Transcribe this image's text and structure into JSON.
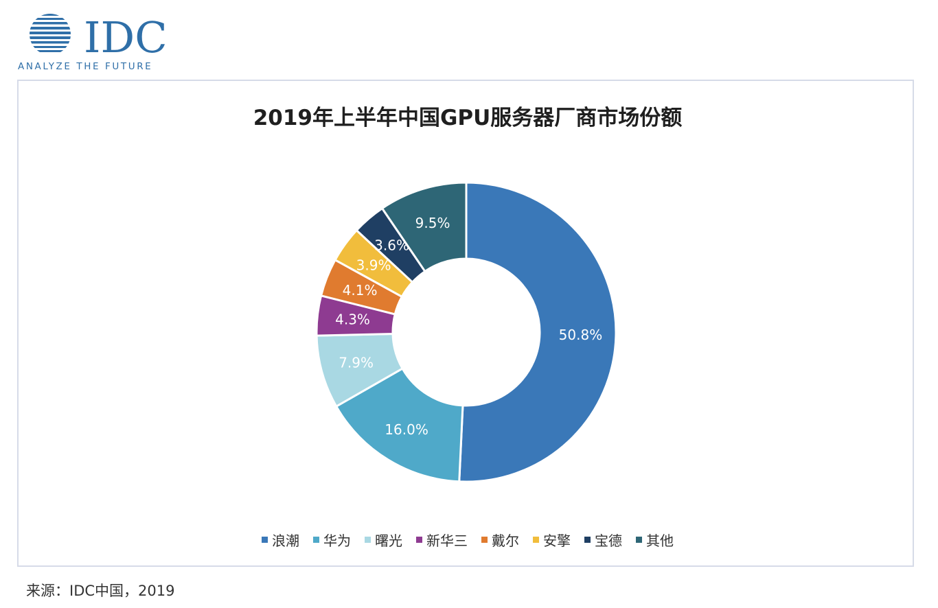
{
  "logo": {
    "brand": "IDC",
    "tagline": "ANALYZE THE FUTURE",
    "color": "#2f6fa8"
  },
  "source_text": "来源：IDC中国，2019",
  "chart_data": {
    "type": "pie",
    "variant": "donut",
    "title": "2019年上半年中国GPU服务器厂商市场份额",
    "legend_position": "bottom",
    "start_angle_deg": 0,
    "direction": "clockwise",
    "slices": [
      {
        "name": "浪潮",
        "value": 50.8,
        "label": "50.8%",
        "color": "#3a78b8"
      },
      {
        "name": "华为",
        "value": 16.0,
        "label": "16.0%",
        "color": "#4fa9c9"
      },
      {
        "name": "曙光",
        "value": 7.9,
        "label": "7.9%",
        "color": "#a9d8e3"
      },
      {
        "name": "新华三",
        "value": 4.3,
        "label": "4.3%",
        "color": "#8e3b91"
      },
      {
        "name": "戴尔",
        "value": 4.1,
        "label": "4.1%",
        "color": "#e07b2f"
      },
      {
        "name": "安擎",
        "value": 3.9,
        "label": "3.9%",
        "color": "#f1bd3c"
      },
      {
        "name": "宝德",
        "value": 3.6,
        "label": "3.6%",
        "color": "#1f3f63"
      },
      {
        "name": "其他",
        "value": 9.5,
        "label": "9.5%",
        "color": "#2e6676"
      }
    ]
  }
}
